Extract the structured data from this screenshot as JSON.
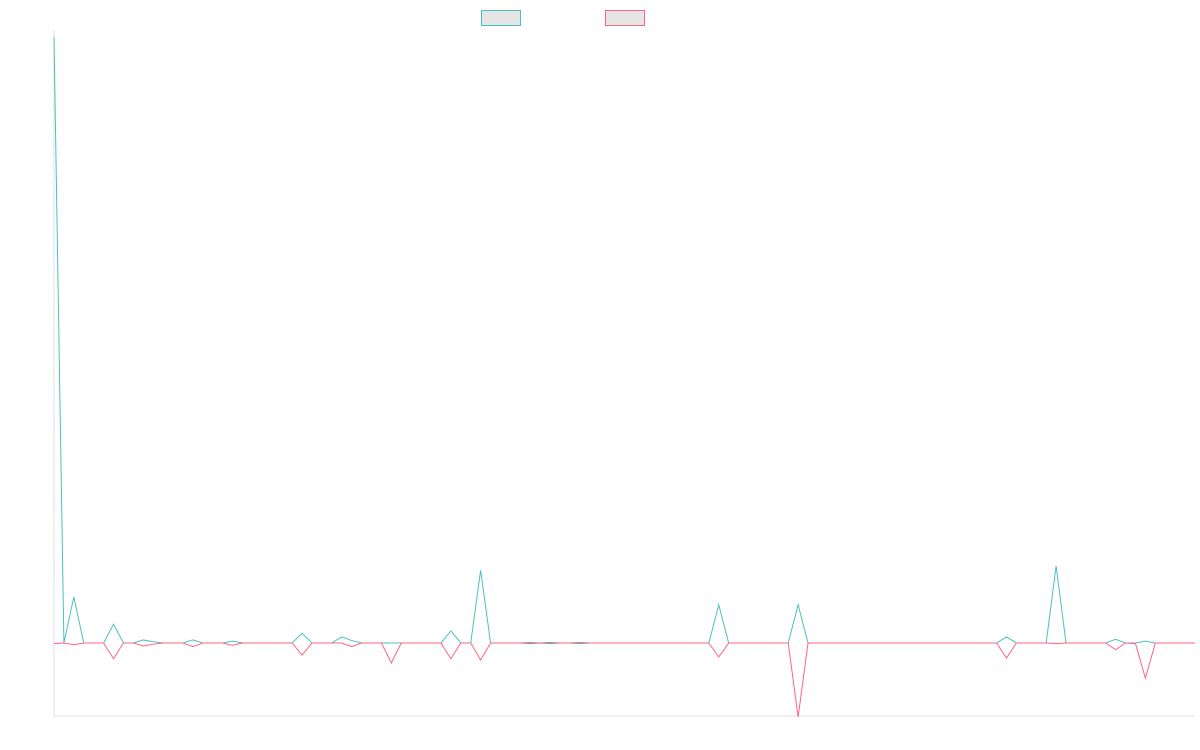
{
  "chart_data": {
    "type": "line",
    "title": "",
    "xlabel": "",
    "ylabel": "",
    "ylim": [
      -12.05,
      100
    ],
    "grid": false,
    "legend": "top-center",
    "series": [
      {
        "color": "#4bc0c0",
        "values": [
          100,
          0,
          7.6,
          0,
          0,
          0,
          3.1,
          0,
          0,
          0.5,
          0.2,
          0,
          0,
          0,
          0.5,
          0,
          0,
          0,
          0.3,
          0,
          0,
          0,
          0,
          0,
          0,
          1.6,
          0,
          0,
          0,
          1,
          0.4,
          0,
          0,
          0,
          0,
          0,
          0,
          0,
          0,
          0,
          2,
          0,
          0,
          12,
          0,
          0,
          0,
          0,
          0.1,
          0,
          0.1,
          0,
          0,
          0.1,
          0,
          0,
          0,
          0,
          0,
          0,
          0,
          0,
          0,
          0,
          0,
          0,
          0,
          6.3,
          0,
          0,
          0,
          0,
          0,
          0,
          0,
          6.3,
          0,
          0,
          0,
          0,
          0,
          0,
          0,
          0,
          0,
          0,
          0,
          0,
          0,
          0,
          0,
          0,
          0,
          0,
          0,
          0,
          1,
          0,
          0,
          0,
          0,
          12.7,
          0,
          0,
          0,
          0,
          0,
          0.6,
          0,
          0,
          0.3,
          0,
          0,
          0,
          0,
          0
        ]
      },
      {
        "color": "#ff6384",
        "values": [
          -0.1,
          0,
          -0.3,
          0,
          0,
          0,
          -2.6,
          0,
          0,
          -0.5,
          -0.2,
          0,
          0,
          0,
          -0.6,
          0,
          0,
          0,
          -0.4,
          0,
          0,
          0,
          0,
          0,
          0,
          -2,
          0,
          0,
          0,
          0,
          -0.6,
          0,
          0,
          0,
          -3.3,
          0,
          0,
          0,
          0,
          0,
          -2.6,
          0,
          0,
          -2.8,
          0,
          0,
          0,
          0,
          -0.1,
          0,
          -0.1,
          0,
          0,
          -0.1,
          0,
          0,
          0,
          0,
          0,
          0,
          0,
          0,
          0,
          0,
          0,
          0,
          0,
          -2.3,
          0,
          0,
          0,
          0,
          0,
          0,
          0,
          -12.2,
          0,
          0,
          0,
          0,
          0,
          0,
          0,
          0,
          0,
          0,
          0,
          0,
          0,
          0,
          0,
          0,
          0,
          0,
          0,
          0,
          -2.5,
          0,
          0,
          0,
          0,
          -0.1,
          0,
          0,
          0,
          0,
          0,
          -1.1,
          0,
          -0.1,
          -5.8,
          0,
          0,
          0,
          0,
          0
        ]
      }
    ]
  }
}
